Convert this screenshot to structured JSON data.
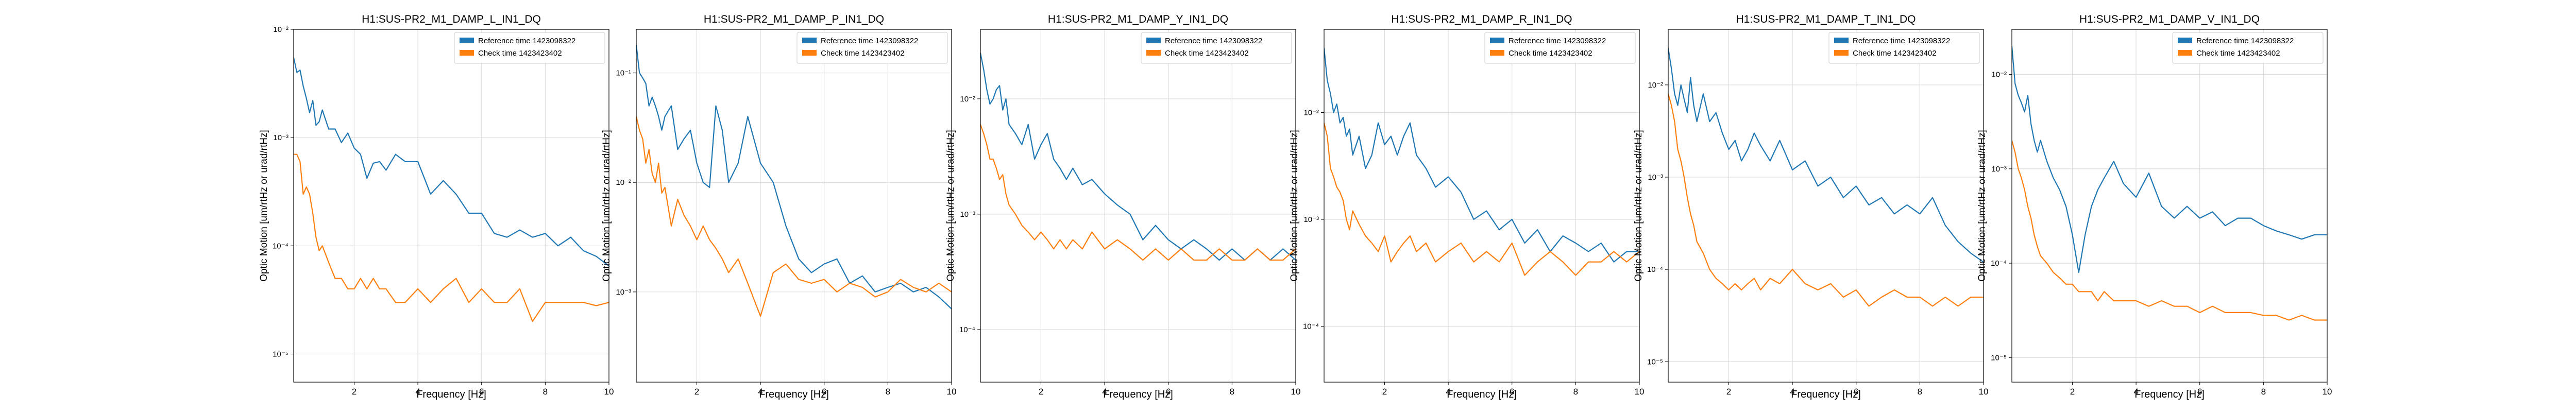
{
  "figure": {
    "colors": {
      "reference": "#1f77b4",
      "check": "#ff7f0e",
      "grid": "#dddddd",
      "axis": "#000000"
    }
  },
  "chart_data": [
    {
      "type": "line",
      "title": "H1:SUS-PR2_M1_DAMP_L_IN1_DQ",
      "xlabel": "Frequency [Hz]",
      "ylabel": "Optic Motion [um/rtHz or urad/rtHz]",
      "xlim": [
        0.1,
        10
      ],
      "ylim": [
        5.5e-06,
        0.01
      ],
      "yscale": "log",
      "grid": true,
      "legend_position": "top-right",
      "xticks": [
        2,
        4,
        6,
        8,
        10
      ],
      "xtick_labels": [
        "2",
        "4",
        "6",
        "8",
        "10"
      ],
      "yticks": [
        1e-05,
        0.0001,
        0.001,
        0.01
      ],
      "ytick_labels": [
        "10⁻⁵",
        "10⁻⁴",
        "10⁻³",
        "10⁻²"
      ],
      "x": [
        0.1,
        0.2,
        0.3,
        0.4,
        0.5,
        0.6,
        0.7,
        0.8,
        0.9,
        1.0,
        1.2,
        1.4,
        1.6,
        1.8,
        2.0,
        2.2,
        2.4,
        2.6,
        2.8,
        3.0,
        3.3,
        3.6,
        4.0,
        4.4,
        4.8,
        5.2,
        5.6,
        6.0,
        6.4,
        6.8,
        7.2,
        7.6,
        8.0,
        8.4,
        8.8,
        9.2,
        9.6,
        10.0
      ],
      "series": [
        {
          "name": "Reference time 1423098322",
          "color": "#1f77b4",
          "values": [
            0.0055,
            0.004,
            0.0042,
            0.003,
            0.0023,
            0.0017,
            0.0022,
            0.0013,
            0.0014,
            0.0018,
            0.0012,
            0.0012,
            0.0009,
            0.0011,
            0.0008,
            0.0007,
            0.00042,
            0.00058,
            0.0006,
            0.0005,
            0.0007,
            0.0006,
            0.0006,
            0.0003,
            0.0004,
            0.0003,
            0.0002,
            0.0002,
            0.00013,
            0.00012,
            0.00014,
            0.00012,
            0.00013,
            0.0001,
            0.00012,
            9e-05,
            8e-05,
            6.5e-05
          ]
        },
        {
          "name": "Check time 1423423402",
          "color": "#ff7f0e",
          "values": [
            0.0007,
            0.0007,
            0.0006,
            0.0003,
            0.00035,
            0.0003,
            0.0002,
            0.00012,
            9e-05,
            0.0001,
            7e-05,
            5e-05,
            5e-05,
            4e-05,
            4e-05,
            5e-05,
            4e-05,
            5e-05,
            4e-05,
            4e-05,
            3e-05,
            3e-05,
            4e-05,
            3e-05,
            4e-05,
            5e-05,
            3e-05,
            4e-05,
            3e-05,
            3e-05,
            4e-05,
            2e-05,
            3e-05,
            3e-05,
            3e-05,
            3e-05,
            2.8e-05,
            3e-05
          ]
        }
      ]
    },
    {
      "type": "line",
      "title": "H1:SUS-PR2_M1_DAMP_P_IN1_DQ",
      "xlabel": "Frequency [Hz]",
      "ylabel": "Optic Motion [um/rtHz or urad/rtHz]",
      "xlim": [
        0.1,
        10
      ],
      "ylim": [
        0.00015,
        0.25
      ],
      "yscale": "log",
      "grid": true,
      "legend_position": "top-right",
      "xticks": [
        2,
        4,
        6,
        8,
        10
      ],
      "xtick_labels": [
        "2",
        "4",
        "6",
        "8",
        "10"
      ],
      "yticks": [
        0.001,
        0.01,
        0.1
      ],
      "ytick_labels": [
        "10⁻³",
        "10⁻²",
        "10⁻¹"
      ],
      "x": [
        0.1,
        0.2,
        0.3,
        0.4,
        0.5,
        0.6,
        0.7,
        0.8,
        0.9,
        1.0,
        1.2,
        1.4,
        1.6,
        1.8,
        2.0,
        2.2,
        2.4,
        2.6,
        2.8,
        3.0,
        3.3,
        3.6,
        4.0,
        4.4,
        4.8,
        5.2,
        5.6,
        6.0,
        6.4,
        6.8,
        7.2,
        7.6,
        8.0,
        8.4,
        8.8,
        9.2,
        9.6,
        10.0
      ],
      "series": [
        {
          "name": "Reference time 1423098322",
          "color": "#1f77b4",
          "values": [
            0.18,
            0.1,
            0.09,
            0.08,
            0.05,
            0.06,
            0.05,
            0.04,
            0.03,
            0.04,
            0.05,
            0.02,
            0.025,
            0.03,
            0.015,
            0.01,
            0.009,
            0.05,
            0.03,
            0.01,
            0.015,
            0.04,
            0.015,
            0.01,
            0.004,
            0.002,
            0.0015,
            0.0018,
            0.002,
            0.0012,
            0.0014,
            0.001,
            0.0011,
            0.0012,
            0.001,
            0.0011,
            0.0009,
            0.0007
          ]
        },
        {
          "name": "Check time 1423423402",
          "color": "#ff7f0e",
          "values": [
            0.04,
            0.03,
            0.025,
            0.015,
            0.02,
            0.012,
            0.01,
            0.015,
            0.008,
            0.009,
            0.004,
            0.007,
            0.005,
            0.004,
            0.003,
            0.004,
            0.003,
            0.0025,
            0.002,
            0.0015,
            0.002,
            0.0012,
            0.0006,
            0.0015,
            0.0018,
            0.0013,
            0.0012,
            0.0013,
            0.001,
            0.0012,
            0.0011,
            0.0009,
            0.001,
            0.0013,
            0.0011,
            0.001,
            0.0012,
            0.001
          ]
        }
      ]
    },
    {
      "type": "line",
      "title": "H1:SUS-PR2_M1_DAMP_Y_IN1_DQ",
      "xlabel": "Frequency [Hz]",
      "ylabel": "Optic Motion [um/rtHz or urad/rtHz]",
      "xlim": [
        0.1,
        10
      ],
      "ylim": [
        3.5e-05,
        0.04
      ],
      "yscale": "log",
      "grid": true,
      "legend_position": "top-right",
      "xticks": [
        2,
        4,
        6,
        8,
        10
      ],
      "xtick_labels": [
        "2",
        "4",
        "6",
        "8",
        "10"
      ],
      "yticks": [
        0.0001,
        0.001,
        0.01
      ],
      "ytick_labels": [
        "10⁻⁴",
        "10⁻³",
        "10⁻²"
      ],
      "x": [
        0.1,
        0.2,
        0.3,
        0.4,
        0.5,
        0.6,
        0.7,
        0.8,
        0.9,
        1.0,
        1.2,
        1.4,
        1.6,
        1.8,
        2.0,
        2.2,
        2.4,
        2.6,
        2.8,
        3.0,
        3.3,
        3.6,
        4.0,
        4.4,
        4.8,
        5.2,
        5.6,
        6.0,
        6.4,
        6.8,
        7.2,
        7.6,
        8.0,
        8.4,
        8.8,
        9.2,
        9.6,
        10.0
      ],
      "series": [
        {
          "name": "Reference time 1423098322",
          "color": "#1f77b4",
          "values": [
            0.025,
            0.018,
            0.012,
            0.009,
            0.01,
            0.012,
            0.013,
            0.008,
            0.01,
            0.006,
            0.005,
            0.004,
            0.006,
            0.003,
            0.004,
            0.005,
            0.003,
            0.0025,
            0.002,
            0.0025,
            0.0018,
            0.002,
            0.0015,
            0.0012,
            0.001,
            0.0006,
            0.0008,
            0.0006,
            0.0005,
            0.0006,
            0.0005,
            0.0004,
            0.0005,
            0.0004,
            0.0005,
            0.0004,
            0.0005,
            0.0004
          ]
        },
        {
          "name": "Check time 1423423402",
          "color": "#ff7f0e",
          "values": [
            0.006,
            0.005,
            0.004,
            0.003,
            0.003,
            0.0025,
            0.002,
            0.0022,
            0.0015,
            0.0012,
            0.001,
            0.0008,
            0.0007,
            0.0006,
            0.0007,
            0.0006,
            0.0005,
            0.0006,
            0.0005,
            0.0006,
            0.0005,
            0.0007,
            0.0005,
            0.0006,
            0.0005,
            0.0004,
            0.0005,
            0.0004,
            0.0005,
            0.0004,
            0.0004,
            0.0005,
            0.0004,
            0.0004,
            0.0005,
            0.0004,
            0.0004,
            0.0005
          ]
        }
      ]
    },
    {
      "type": "line",
      "title": "H1:SUS-PR2_M1_DAMP_R_IN1_DQ",
      "xlabel": "Frequency [Hz]",
      "ylabel": "Optic Motion [um/rtHz or urad/rtHz]",
      "xlim": [
        0.1,
        10
      ],
      "ylim": [
        3e-05,
        0.06
      ],
      "yscale": "log",
      "grid": true,
      "legend_position": "top-right",
      "xticks": [
        2,
        4,
        6,
        8,
        10
      ],
      "xtick_labels": [
        "2",
        "4",
        "6",
        "8",
        "10"
      ],
      "yticks": [
        0.0001,
        0.001,
        0.01
      ],
      "ytick_labels": [
        "10⁻⁴",
        "10⁻³",
        "10⁻²"
      ],
      "x": [
        0.1,
        0.2,
        0.3,
        0.4,
        0.5,
        0.6,
        0.7,
        0.8,
        0.9,
        1.0,
        1.2,
        1.4,
        1.6,
        1.8,
        2.0,
        2.2,
        2.4,
        2.6,
        2.8,
        3.0,
        3.3,
        3.6,
        4.0,
        4.4,
        4.8,
        5.2,
        5.6,
        6.0,
        6.4,
        6.8,
        7.2,
        7.6,
        8.0,
        8.4,
        8.8,
        9.2,
        9.6,
        10.0
      ],
      "series": [
        {
          "name": "Reference time 1423098322",
          "color": "#1f77b4",
          "values": [
            0.04,
            0.02,
            0.015,
            0.01,
            0.012,
            0.008,
            0.009,
            0.006,
            0.007,
            0.004,
            0.006,
            0.003,
            0.004,
            0.008,
            0.005,
            0.006,
            0.004,
            0.006,
            0.008,
            0.004,
            0.003,
            0.002,
            0.0025,
            0.0018,
            0.001,
            0.0012,
            0.0008,
            0.001,
            0.0006,
            0.0008,
            0.0005,
            0.0007,
            0.0006,
            0.0005,
            0.0006,
            0.0004,
            0.0005,
            0.0005
          ]
        },
        {
          "name": "Check time 1423423402",
          "color": "#ff7f0e",
          "values": [
            0.008,
            0.006,
            0.003,
            0.0025,
            0.002,
            0.0018,
            0.0015,
            0.001,
            0.0008,
            0.0012,
            0.0009,
            0.0007,
            0.0006,
            0.0005,
            0.0007,
            0.0004,
            0.0005,
            0.0006,
            0.0007,
            0.0005,
            0.0006,
            0.0004,
            0.0005,
            0.0006,
            0.0004,
            0.0005,
            0.0004,
            0.0006,
            0.0003,
            0.0004,
            0.0005,
            0.0004,
            0.0003,
            0.0004,
            0.0004,
            0.0005,
            0.0004,
            0.0005
          ]
        }
      ]
    },
    {
      "type": "line",
      "title": "H1:SUS-PR2_M1_DAMP_T_IN1_DQ",
      "xlabel": "Frequency [Hz]",
      "ylabel": "Optic Motion [um/rtHz or urad/rtHz]",
      "xlim": [
        0.1,
        10
      ],
      "ylim": [
        6e-06,
        0.04
      ],
      "yscale": "log",
      "grid": true,
      "legend_position": "top-right",
      "xticks": [
        2,
        4,
        6,
        8,
        10
      ],
      "xtick_labels": [
        "2",
        "4",
        "6",
        "8",
        "10"
      ],
      "yticks": [
        1e-05,
        0.0001,
        0.001,
        0.01
      ],
      "ytick_labels": [
        "10⁻⁵",
        "10⁻⁴",
        "10⁻³",
        "10⁻²"
      ],
      "x": [
        0.1,
        0.2,
        0.3,
        0.4,
        0.5,
        0.6,
        0.7,
        0.8,
        0.9,
        1.0,
        1.2,
        1.4,
        1.6,
        1.8,
        2.0,
        2.2,
        2.4,
        2.6,
        2.8,
        3.0,
        3.3,
        3.6,
        4.0,
        4.4,
        4.8,
        5.2,
        5.6,
        6.0,
        6.4,
        6.8,
        7.2,
        7.6,
        8.0,
        8.4,
        8.8,
        9.2,
        9.6,
        10.0
      ],
      "series": [
        {
          "name": "Reference time 1423098322",
          "color": "#1f77b4",
          "values": [
            0.025,
            0.015,
            0.008,
            0.006,
            0.01,
            0.007,
            0.005,
            0.012,
            0.006,
            0.004,
            0.008,
            0.004,
            0.005,
            0.003,
            0.002,
            0.0025,
            0.0015,
            0.002,
            0.003,
            0.0022,
            0.0015,
            0.0025,
            0.0012,
            0.0015,
            0.0008,
            0.001,
            0.0006,
            0.0008,
            0.0005,
            0.0006,
            0.0004,
            0.0005,
            0.0004,
            0.0006,
            0.0003,
            0.0002,
            0.00015,
            0.00012
          ]
        },
        {
          "name": "Check time 1423423402",
          "color": "#ff7f0e",
          "values": [
            0.008,
            0.006,
            0.004,
            0.002,
            0.0015,
            0.001,
            0.0006,
            0.0004,
            0.0003,
            0.0002,
            0.00015,
            0.0001,
            8e-05,
            7e-05,
            6e-05,
            7e-05,
            6e-05,
            7e-05,
            8e-05,
            6e-05,
            8e-05,
            7e-05,
            0.0001,
            7e-05,
            6e-05,
            7e-05,
            5e-05,
            6e-05,
            4e-05,
            5e-05,
            6e-05,
            5e-05,
            5e-05,
            4e-05,
            5e-05,
            4e-05,
            5e-05,
            5e-05
          ]
        }
      ]
    },
    {
      "type": "line",
      "title": "H1:SUS-PR2_M1_DAMP_V_IN1_DQ",
      "xlabel": "Frequency [Hz]",
      "ylabel": "Optic Motion [um/rtHz or urad/rtHz]",
      "xlim": [
        0.1,
        10
      ],
      "ylim": [
        5.5e-06,
        0.03
      ],
      "yscale": "log",
      "grid": true,
      "legend_position": "top-right",
      "xticks": [
        2,
        4,
        6,
        8,
        10
      ],
      "xtick_labels": [
        "2",
        "4",
        "6",
        "8",
        "10"
      ],
      "yticks": [
        1e-05,
        0.0001,
        0.001,
        0.01
      ],
      "ytick_labels": [
        "10⁻⁵",
        "10⁻⁴",
        "10⁻³",
        "10⁻²"
      ],
      "x": [
        0.1,
        0.2,
        0.3,
        0.4,
        0.5,
        0.6,
        0.7,
        0.8,
        0.9,
        1.0,
        1.2,
        1.4,
        1.6,
        1.8,
        2.0,
        2.2,
        2.4,
        2.6,
        2.8,
        3.0,
        3.3,
        3.6,
        4.0,
        4.4,
        4.8,
        5.2,
        5.6,
        6.0,
        6.4,
        6.8,
        7.2,
        7.6,
        8.0,
        8.4,
        8.8,
        9.2,
        9.6,
        10.0
      ],
      "series": [
        {
          "name": "Reference time 1423098322",
          "color": "#1f77b4",
          "values": [
            0.02,
            0.008,
            0.006,
            0.005,
            0.004,
            0.006,
            0.003,
            0.002,
            0.0015,
            0.002,
            0.0012,
            0.0008,
            0.0006,
            0.0004,
            0.0002,
            8e-05,
            0.0002,
            0.0004,
            0.0006,
            0.0008,
            0.0012,
            0.0007,
            0.0005,
            0.0009,
            0.0004,
            0.0003,
            0.0004,
            0.0003,
            0.00035,
            0.00025,
            0.0003,
            0.0003,
            0.00025,
            0.00022,
            0.0002,
            0.00018,
            0.0002,
            0.0002
          ]
        },
        {
          "name": "Check time 1423423402",
          "color": "#ff7f0e",
          "values": [
            0.002,
            0.0015,
            0.001,
            0.0008,
            0.0006,
            0.0004,
            0.0003,
            0.0002,
            0.00015,
            0.00012,
            0.0001,
            8e-05,
            7e-05,
            6e-05,
            6e-05,
            5e-05,
            5e-05,
            5e-05,
            4e-05,
            5e-05,
            4e-05,
            4e-05,
            4e-05,
            3.5e-05,
            4e-05,
            3.5e-05,
            3.5e-05,
            3e-05,
            3.5e-05,
            3e-05,
            3e-05,
            3e-05,
            2.8e-05,
            2.8e-05,
            2.5e-05,
            2.8e-05,
            2.5e-05,
            2.5e-05
          ]
        }
      ]
    }
  ]
}
